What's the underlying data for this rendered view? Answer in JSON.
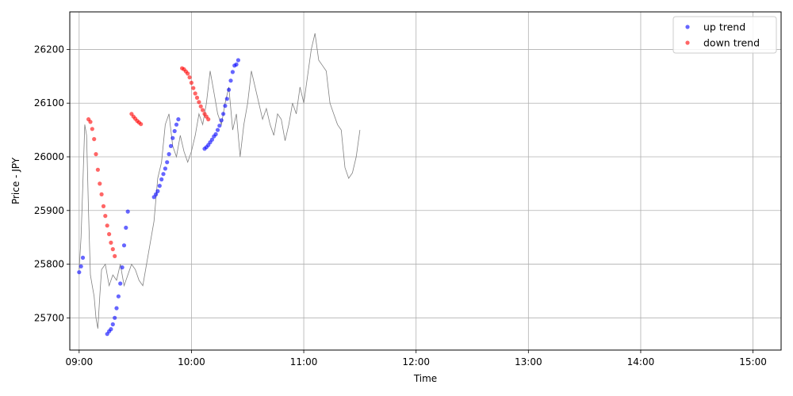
{
  "chart_data": {
    "type": "scatter",
    "xlabel": "Time",
    "ylabel": "Price - JPY",
    "x_ticks": [
      "09:00",
      "10:00",
      "11:00",
      "12:00",
      "13:00",
      "14:00",
      "15:00"
    ],
    "y_ticks": [
      25700,
      25800,
      25900,
      26000,
      26100,
      26200
    ],
    "xlim": [
      "08:55",
      "15:15"
    ],
    "ylim": [
      25640,
      26270
    ],
    "grid": true,
    "legend_position": "top-right",
    "price_line": {
      "color": "#808080",
      "points": [
        [
          "09:00",
          25790
        ],
        [
          "09:01",
          25850
        ],
        [
          "09:02",
          25950
        ],
        [
          "09:03",
          26060
        ],
        [
          "09:04",
          26040
        ],
        [
          "09:05",
          25900
        ],
        [
          "09:06",
          25780
        ],
        [
          "09:07",
          25760
        ],
        [
          "09:08",
          25740
        ],
        [
          "09:09",
          25700
        ],
        [
          "09:10",
          25680
        ],
        [
          "09:11",
          25740
        ],
        [
          "09:12",
          25790
        ],
        [
          "09:14",
          25800
        ],
        [
          "09:16",
          25760
        ],
        [
          "09:18",
          25780
        ],
        [
          "09:20",
          25770
        ],
        [
          "09:22",
          25800
        ],
        [
          "09:24",
          25760
        ],
        [
          "09:26",
          25780
        ],
        [
          "09:28",
          25800
        ],
        [
          "09:30",
          25790
        ],
        [
          "09:32",
          25770
        ],
        [
          "09:34",
          25760
        ],
        [
          "09:36",
          25800
        ],
        [
          "09:38",
          25840
        ],
        [
          "09:40",
          25880
        ],
        [
          "09:42",
          25960
        ],
        [
          "09:44",
          25990
        ],
        [
          "09:46",
          26060
        ],
        [
          "09:48",
          26080
        ],
        [
          "09:50",
          26020
        ],
        [
          "09:52",
          26000
        ],
        [
          "09:54",
          26040
        ],
        [
          "09:56",
          26010
        ],
        [
          "09:58",
          25990
        ],
        [
          "10:00",
          26010
        ],
        [
          "10:02",
          26040
        ],
        [
          "10:04",
          26080
        ],
        [
          "10:06",
          26060
        ],
        [
          "10:08",
          26100
        ],
        [
          "10:10",
          26160
        ],
        [
          "10:12",
          26120
        ],
        [
          "10:14",
          26080
        ],
        [
          "10:16",
          26060
        ],
        [
          "10:18",
          26100
        ],
        [
          "10:20",
          26130
        ],
        [
          "10:22",
          26050
        ],
        [
          "10:24",
          26080
        ],
        [
          "10:26",
          26000
        ],
        [
          "10:28",
          26060
        ],
        [
          "10:30",
          26100
        ],
        [
          "10:32",
          26160
        ],
        [
          "10:34",
          26130
        ],
        [
          "10:36",
          26100
        ],
        [
          "10:38",
          26070
        ],
        [
          "10:40",
          26090
        ],
        [
          "10:42",
          26060
        ],
        [
          "10:44",
          26040
        ],
        [
          "10:46",
          26080
        ],
        [
          "10:48",
          26070
        ],
        [
          "10:50",
          26030
        ],
        [
          "10:52",
          26060
        ],
        [
          "10:54",
          26100
        ],
        [
          "10:56",
          26080
        ],
        [
          "10:58",
          26130
        ],
        [
          "11:00",
          26100
        ],
        [
          "11:02",
          26150
        ],
        [
          "11:04",
          26200
        ],
        [
          "11:06",
          26230
        ],
        [
          "11:08",
          26180
        ],
        [
          "11:10",
          26170
        ],
        [
          "11:12",
          26160
        ],
        [
          "11:14",
          26100
        ],
        [
          "11:16",
          26080
        ],
        [
          "11:18",
          26060
        ],
        [
          "11:20",
          26050
        ],
        [
          "11:22",
          25980
        ],
        [
          "11:24",
          25960
        ],
        [
          "11:26",
          25970
        ],
        [
          "11:28",
          26000
        ],
        [
          "11:30",
          26050
        ]
      ]
    },
    "series": [
      {
        "name": "up trend",
        "color": "#0000ff",
        "points": [
          [
            "09:00",
            25785
          ],
          [
            "09:01",
            25796
          ],
          [
            "09:02",
            25812
          ],
          [
            "09:15",
            25670
          ],
          [
            "09:16",
            25675
          ],
          [
            "09:17",
            25679
          ],
          [
            "09:18",
            25688
          ],
          [
            "09:19",
            25700
          ],
          [
            "09:20",
            25718
          ],
          [
            "09:21",
            25740
          ],
          [
            "09:22",
            25764
          ],
          [
            "09:23",
            25794
          ],
          [
            "09:24",
            25835
          ],
          [
            "09:25",
            25868
          ],
          [
            "09:26",
            25898
          ],
          [
            "09:40",
            25925
          ],
          [
            "09:41",
            25930
          ],
          [
            "09:42",
            25936
          ],
          [
            "09:43",
            25946
          ],
          [
            "09:44",
            25958
          ],
          [
            "09:45",
            25968
          ],
          [
            "09:46",
            25978
          ],
          [
            "09:47",
            25990
          ],
          [
            "09:48",
            26005
          ],
          [
            "09:49",
            26020
          ],
          [
            "09:50",
            26035
          ],
          [
            "09:51",
            26048
          ],
          [
            "09:52",
            26060
          ],
          [
            "09:53",
            26070
          ],
          [
            "10:07",
            26015
          ],
          [
            "10:08",
            26018
          ],
          [
            "10:09",
            26022
          ],
          [
            "10:10",
            26027
          ],
          [
            "10:11",
            26032
          ],
          [
            "10:12",
            26038
          ],
          [
            "10:13",
            26042
          ],
          [
            "10:14",
            26050
          ],
          [
            "10:15",
            26058
          ],
          [
            "10:16",
            26068
          ],
          [
            "10:17",
            26080
          ],
          [
            "10:18",
            26095
          ],
          [
            "10:19",
            26108
          ],
          [
            "10:20",
            26125
          ],
          [
            "10:21",
            26142
          ],
          [
            "10:22",
            26158
          ],
          [
            "10:23",
            26170
          ],
          [
            "10:24",
            26172
          ],
          [
            "10:25",
            26180
          ]
        ]
      },
      {
        "name": "down trend",
        "color": "#ff0000",
        "points": [
          [
            "09:05",
            26070
          ],
          [
            "09:06",
            26065
          ],
          [
            "09:07",
            26052
          ],
          [
            "09:08",
            26033
          ],
          [
            "09:09",
            26005
          ],
          [
            "09:10",
            25976
          ],
          [
            "09:11",
            25950
          ],
          [
            "09:12",
            25930
          ],
          [
            "09:13",
            25908
          ],
          [
            "09:14",
            25890
          ],
          [
            "09:15",
            25872
          ],
          [
            "09:16",
            25856
          ],
          [
            "09:17",
            25840
          ],
          [
            "09:18",
            25828
          ],
          [
            "09:19",
            25815
          ],
          [
            "09:28",
            26080
          ],
          [
            "09:29",
            26075
          ],
          [
            "09:30",
            26071
          ],
          [
            "09:31",
            26067
          ],
          [
            "09:32",
            26064
          ],
          [
            "09:33",
            26061
          ],
          [
            "09:55",
            26165
          ],
          [
            "09:56",
            26163
          ],
          [
            "09:57",
            26159
          ],
          [
            "09:58",
            26155
          ],
          [
            "09:59",
            26148
          ],
          [
            "10:00",
            26138
          ],
          [
            "10:01",
            26128
          ],
          [
            "10:02",
            26118
          ],
          [
            "10:03",
            26110
          ],
          [
            "10:04",
            26102
          ],
          [
            "10:05",
            26094
          ],
          [
            "10:06",
            26087
          ],
          [
            "10:07",
            26080
          ],
          [
            "10:08",
            26075
          ],
          [
            "10:09",
            26070
          ]
        ]
      }
    ]
  }
}
